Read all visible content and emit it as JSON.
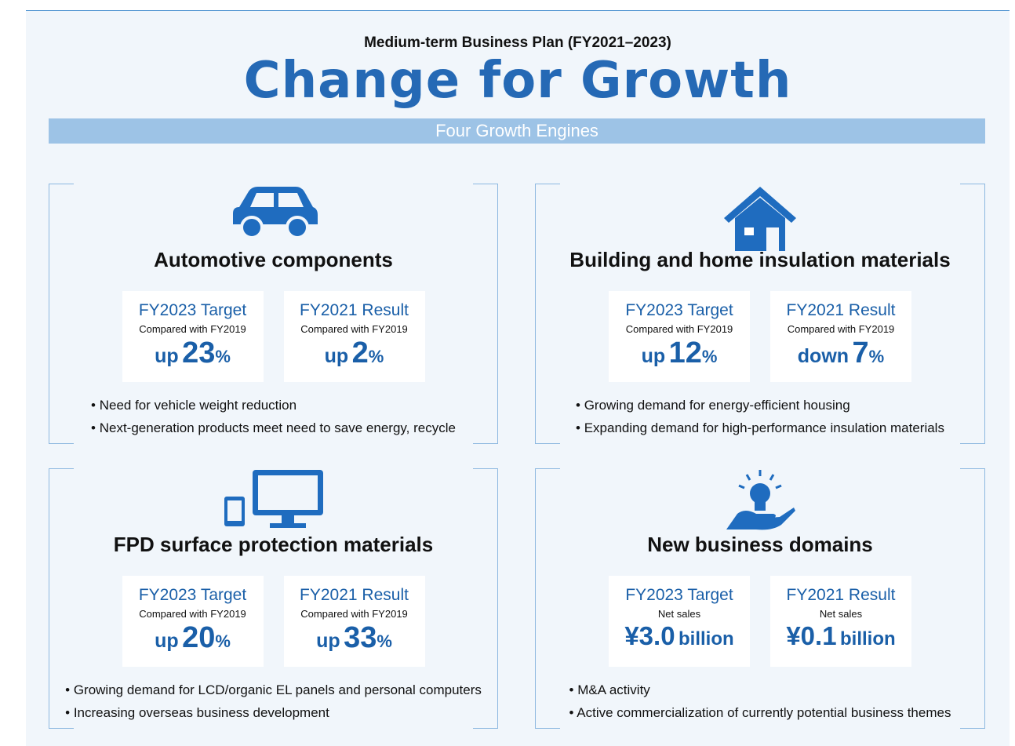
{
  "header": {
    "subtitle": "Medium-term Business Plan (FY2021–2023)",
    "title": "Change for Growth",
    "banner": "Four Growth Engines"
  },
  "engines": [
    {
      "title": "Automotive components",
      "cards": [
        {
          "heading": "FY2023 Target",
          "note": "Compared with FY2019",
          "prefix": "up",
          "value": "23",
          "unit": "%"
        },
        {
          "heading": "FY2021 Result",
          "note": "Compared with FY2019",
          "prefix": "up",
          "value": "2",
          "unit": "%"
        }
      ],
      "bullets": [
        "• Need for vehicle weight reduction",
        "• Next-generation products meet need to save energy, recycle"
      ]
    },
    {
      "title": "Building and home insulation materials",
      "cards": [
        {
          "heading": "FY2023 Target",
          "note": "Compared with FY2019",
          "prefix": "up",
          "value": "12",
          "unit": "%"
        },
        {
          "heading": "FY2021 Result",
          "note": "Compared with FY2019",
          "prefix": "down",
          "value": "7",
          "unit": "%"
        }
      ],
      "bullets": [
        "• Growing demand for energy-efficient housing",
        "• Expanding demand for high-performance insulation materials"
      ]
    },
    {
      "title": "FPD surface protection materials",
      "cards": [
        {
          "heading": "FY2023 Target",
          "note": "Compared with FY2019",
          "prefix": "up",
          "value": "20",
          "unit": "%"
        },
        {
          "heading": "FY2021 Result",
          "note": "Compared with FY2019",
          "prefix": "up",
          "value": "33",
          "unit": "%"
        }
      ],
      "bullets": [
        "• Growing demand for LCD/organic EL panels and personal computers",
        "• Increasing overseas business development"
      ]
    },
    {
      "title": "New business domains",
      "cards": [
        {
          "heading": "FY2023 Target",
          "note": "Net sales",
          "value": "¥3.0",
          "unit": "billion"
        },
        {
          "heading": "FY2021 Result",
          "note": "Net sales",
          "value": "¥0.1",
          "unit": "billion"
        }
      ],
      "bullets": [
        "• M&A activity",
        "• Active commercialization of currently potential business themes"
      ]
    }
  ]
}
